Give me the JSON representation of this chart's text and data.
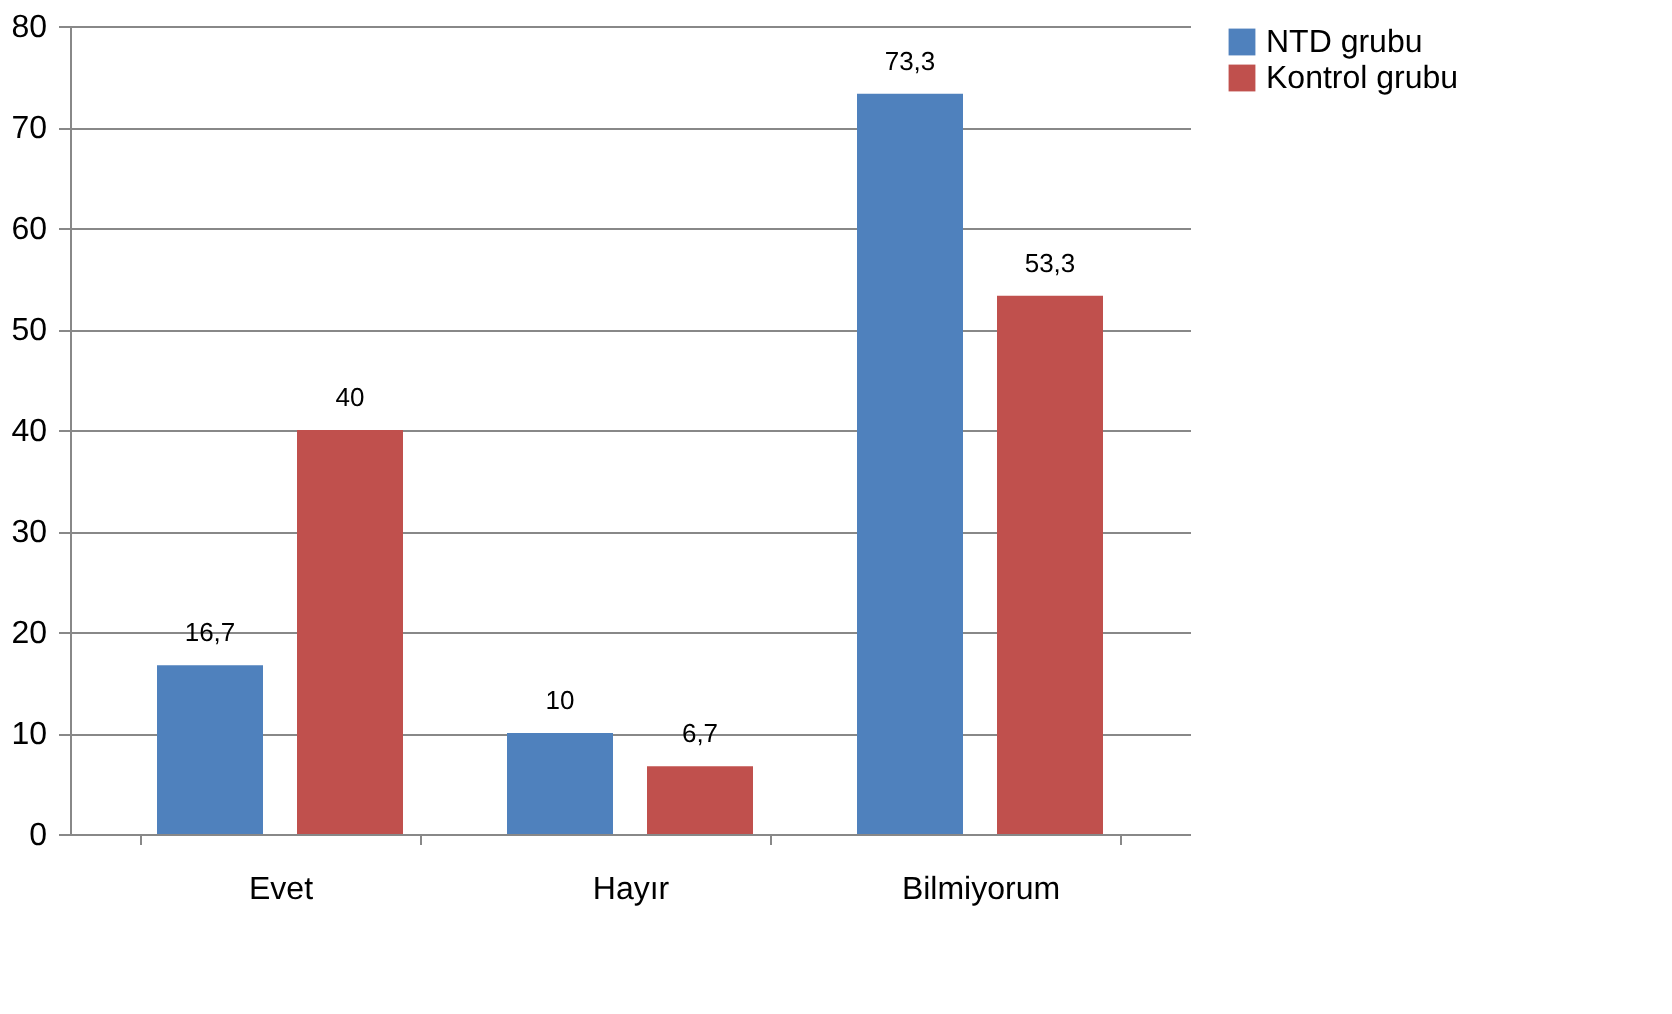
{
  "chart_data": {
    "type": "bar",
    "categories": [
      "Evet",
      "Hayır",
      "Bilmiyorum"
    ],
    "series": [
      {
        "name": "NTD grubu",
        "color": "#4f81bd",
        "values": [
          16.7,
          10,
          73.3
        ],
        "value_labels": [
          "16,7",
          "10",
          "73,3"
        ]
      },
      {
        "name": "Kontrol grubu",
        "color": "#c0504d",
        "values": [
          40,
          6.7,
          53.3
        ],
        "value_labels": [
          "40",
          "6,7",
          "53,3"
        ]
      }
    ],
    "ylim": [
      0,
      80
    ],
    "yticks": [
      0,
      10,
      20,
      30,
      40,
      50,
      60,
      70,
      80
    ],
    "grid": "y",
    "legend": "right"
  }
}
